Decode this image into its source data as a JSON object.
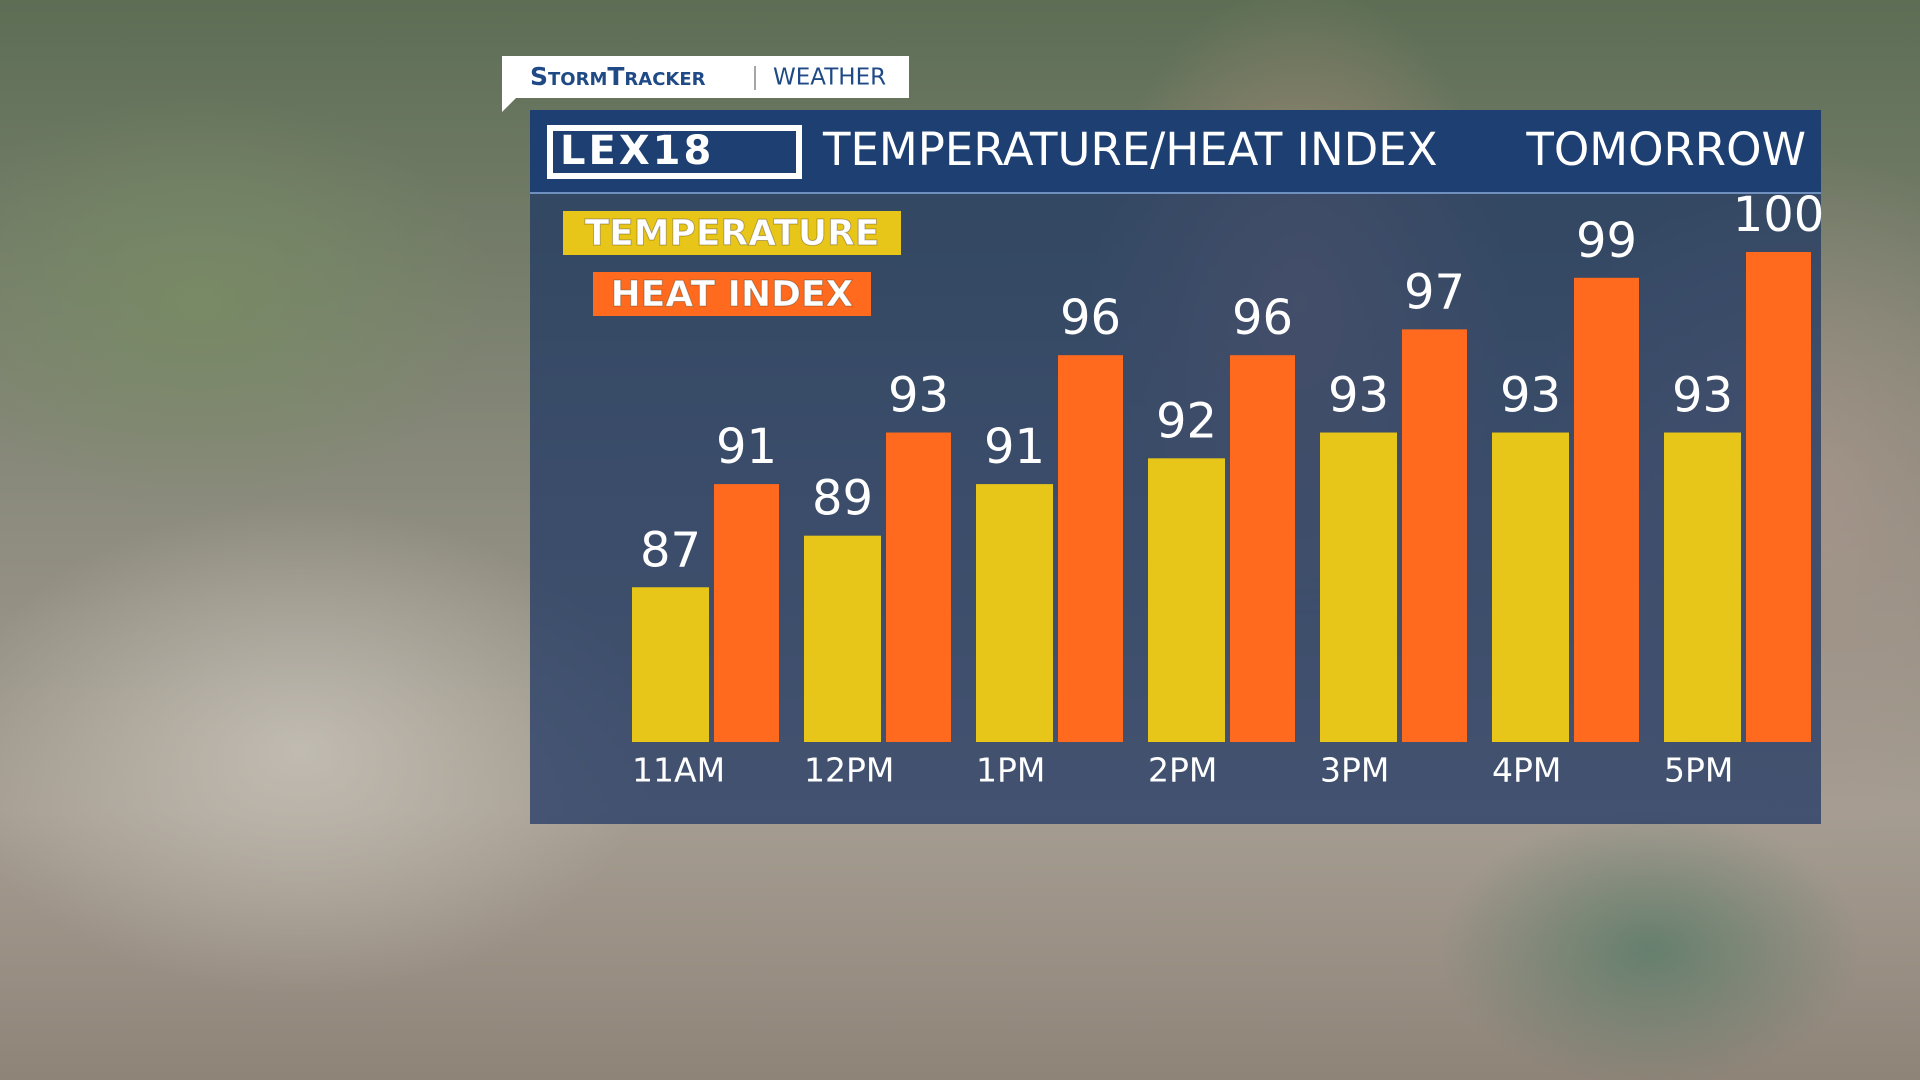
{
  "brand": {
    "name": "StormTracker",
    "section": "WEATHER",
    "logo": "LEX18"
  },
  "chart_data": {
    "type": "bar",
    "title": "TEMPERATURE/HEAT INDEX",
    "subtitle": "TOMORROW",
    "categories": [
      "11AM",
      "12PM",
      "1PM",
      "2PM",
      "3PM",
      "4PM",
      "5PM"
    ],
    "series": [
      {
        "name": "TEMPERATURE",
        "color": "#e8c619",
        "values": [
          87,
          89,
          91,
          92,
          93,
          93,
          93
        ]
      },
      {
        "name": "HEAT INDEX",
        "color": "#ff6a1f",
        "values": [
          91,
          93,
          96,
          96,
          97,
          99,
          100
        ]
      }
    ],
    "ylim": [
      81,
      100
    ]
  }
}
